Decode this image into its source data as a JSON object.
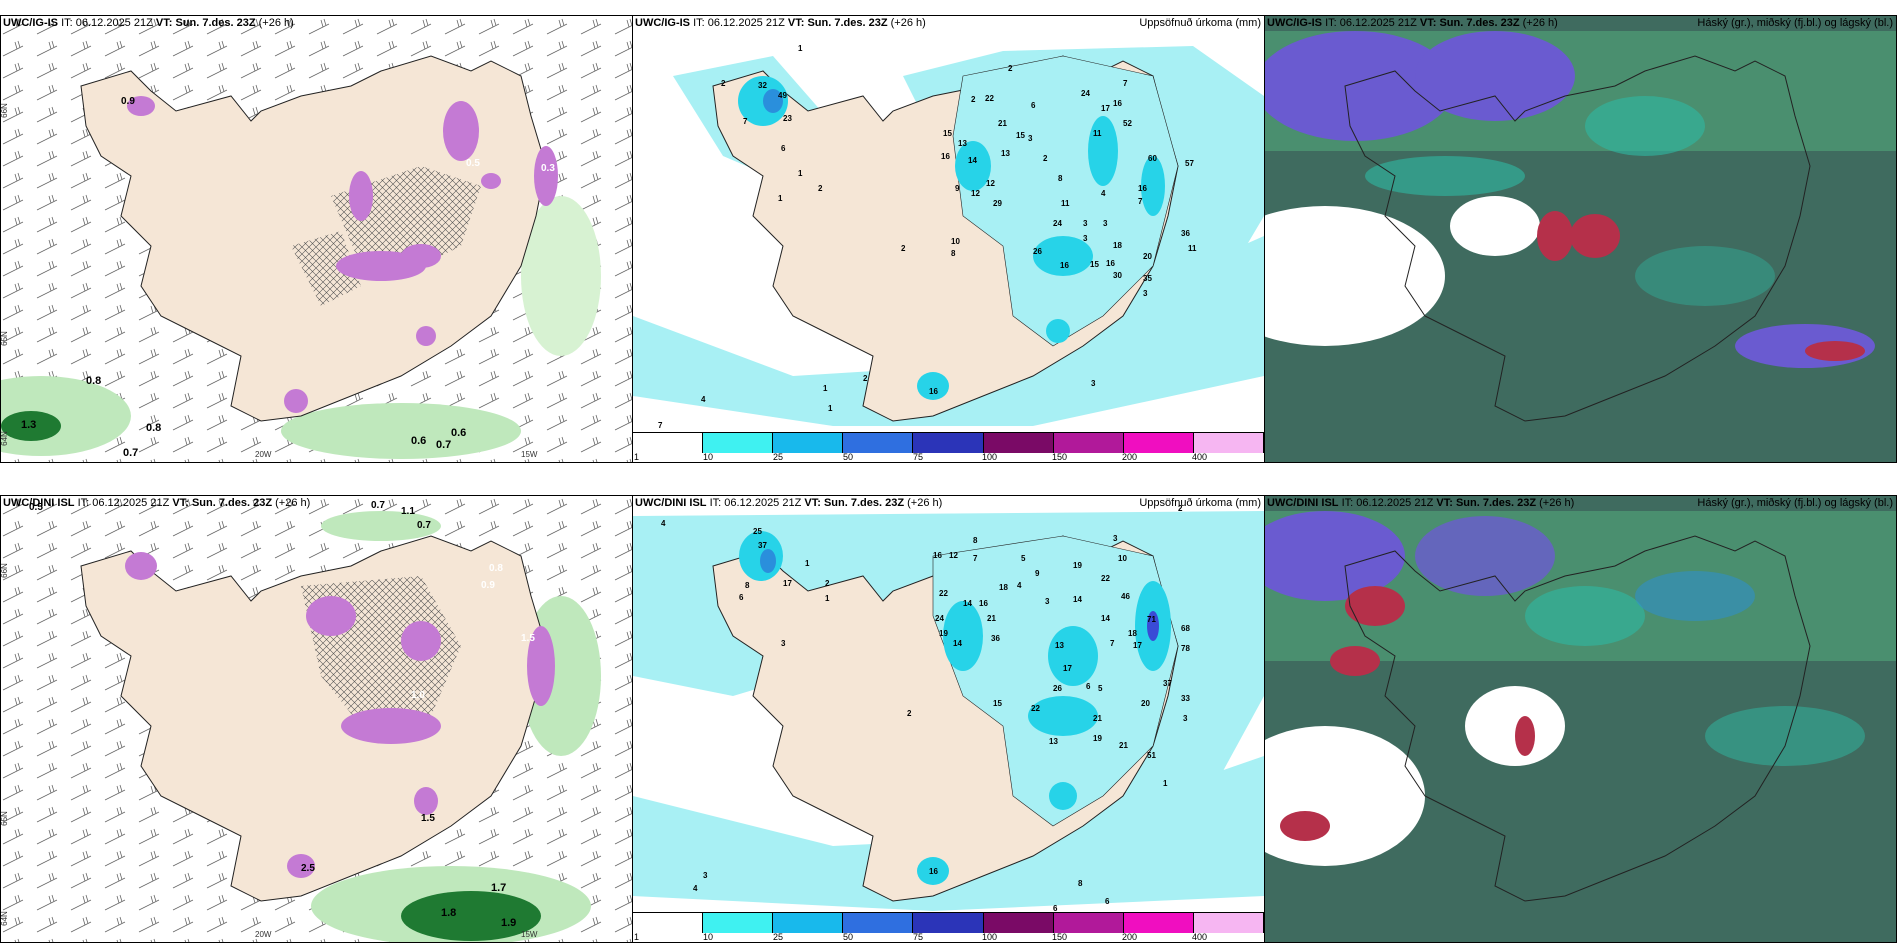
{
  "colors": {
    "land": "#f5e6d6",
    "sea": "#ffffff",
    "precip_light": "#a8f0f4",
    "precip_mid": "#27d3e8",
    "precip_heavy": "#2a8fdc",
    "precip_blue": "#3a4bd6",
    "magenta": "#c47ad4",
    "green_light": "#bfe8bc",
    "green_dark": "#1f7a32",
    "cloud_dark": "#3f6b5f",
    "cloud_mid": "#4a8f6f",
    "cloud_teal": "#2fb9a3",
    "cloud_purple": "#6a5bd0",
    "cloud_red": "#b5304a"
  },
  "colorbar": {
    "labels": [
      "1",
      "10",
      "25",
      "50",
      "75",
      "100",
      "150",
      "200",
      "400"
    ],
    "colors": [
      "#ffffff",
      "#3ff1f1",
      "#18b9ec",
      "#2f6fe0",
      "#2b34b8",
      "#7a0a66",
      "#b1199a",
      "#f00ec0",
      "#f6b6f2"
    ]
  },
  "rows": [
    {
      "model": "UWC/IG-IS",
      "it_label": "IT:",
      "it_value": "06.12.2025 21Z",
      "vt_label": "VT:",
      "vt_value": "Sun. 7.des. 23Z",
      "lead": "(+26 h)",
      "precip_title": "Uppsöfnuð úrkoma (mm)",
      "cloud_title": "Háský (gr.), miðský (fj.bl.) og lágský (bl.)",
      "lat_labels": [
        "66N",
        "65N",
        "64N"
      ],
      "lon_labels": [
        "20W",
        "15W"
      ],
      "snow_values": [
        "0.9",
        "0.8",
        "0.7",
        "1.3",
        "0.6",
        "0.6",
        "0.7",
        "0.5",
        "0.3",
        "0.8"
      ],
      "precip_values": [
        "1",
        "2",
        "32",
        "49",
        "23",
        "7",
        "6",
        "1",
        "2",
        "1",
        "2",
        "22",
        "6",
        "2",
        "15",
        "13",
        "21",
        "14",
        "13",
        "16",
        "12",
        "9",
        "12",
        "29",
        "15",
        "3",
        "2",
        "24",
        "17",
        "16",
        "7",
        "11",
        "52",
        "8",
        "11",
        "4",
        "3",
        "16",
        "60",
        "57",
        "7",
        "24",
        "3",
        "3",
        "36",
        "11",
        "26",
        "16",
        "15",
        "16",
        "30",
        "18",
        "20",
        "35",
        "3",
        "2",
        "10",
        "8",
        "4",
        "1",
        "2",
        "1",
        "7",
        "3",
        "16"
      ]
    },
    {
      "model": "UWC/DINI ISL",
      "it_label": "IT:",
      "it_value": "06.12.2025 21Z",
      "vt_label": "VT:",
      "vt_value": "Sun. 7.des. 23Z",
      "lead": "(+26 h)",
      "precip_title": "Uppsöfnuð úrkoma (mm)",
      "cloud_title": "Háský (gr.), miðský (fj.bl.) og lágský (bl.)",
      "lat_labels": [
        "66N",
        "65N",
        "64N"
      ],
      "lon_labels": [
        "20W",
        "15W"
      ],
      "snow_values": [
        "0.5",
        "1.1",
        "0.7",
        "0.8",
        "1.0",
        "0.9",
        "1.5",
        "2.5",
        "1.8",
        "1.9",
        "1.7",
        "0.7",
        "1.5"
      ],
      "precip_values": [
        "4",
        "25",
        "37",
        "17",
        "1",
        "1",
        "2",
        "8",
        "6",
        "3",
        "16",
        "12",
        "7",
        "8",
        "22",
        "14",
        "24",
        "16",
        "19",
        "36",
        "14",
        "21",
        "18",
        "4",
        "3",
        "5",
        "9",
        "19",
        "22",
        "14",
        "46",
        "14",
        "3",
        "10",
        "2",
        "18",
        "17",
        "71",
        "68",
        "78",
        "13",
        "17",
        "26",
        "6",
        "5",
        "7",
        "21",
        "37",
        "20",
        "33",
        "3",
        "2",
        "15",
        "22",
        "19",
        "13",
        "21",
        "51",
        "1",
        "3",
        "4",
        "8",
        "6",
        "6",
        "16"
      ]
    }
  ]
}
